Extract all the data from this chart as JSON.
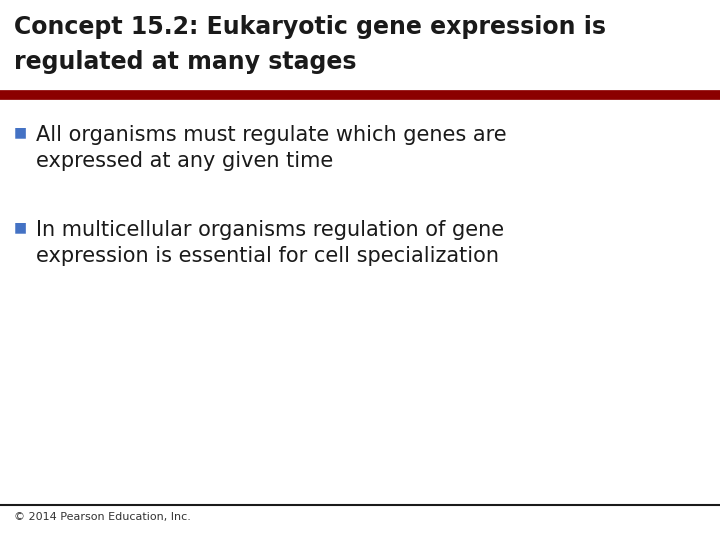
{
  "title_line1": "Concept 15.2: Eukaryotic gene expression is",
  "title_line2": "regulated at many stages",
  "title_color": "#1a1a1a",
  "title_fontsize": 17,
  "divider_color": "#8B0000",
  "divider_thickness": 7,
  "bullet_color": "#4472C4",
  "bullet_text_color": "#1a1a1a",
  "bullet_fontsize": 15,
  "bullets": [
    [
      "All organisms must regulate which genes are",
      "expressed at any given time"
    ],
    [
      "In multicellular organisms regulation of gene",
      "expression is essential for cell specialization"
    ]
  ],
  "footer_text": "© 2014 Pearson Education, Inc.",
  "footer_fontsize": 8,
  "footer_color": "#333333",
  "bottom_line_color": "#1a1a1a",
  "background_color": "#ffffff"
}
